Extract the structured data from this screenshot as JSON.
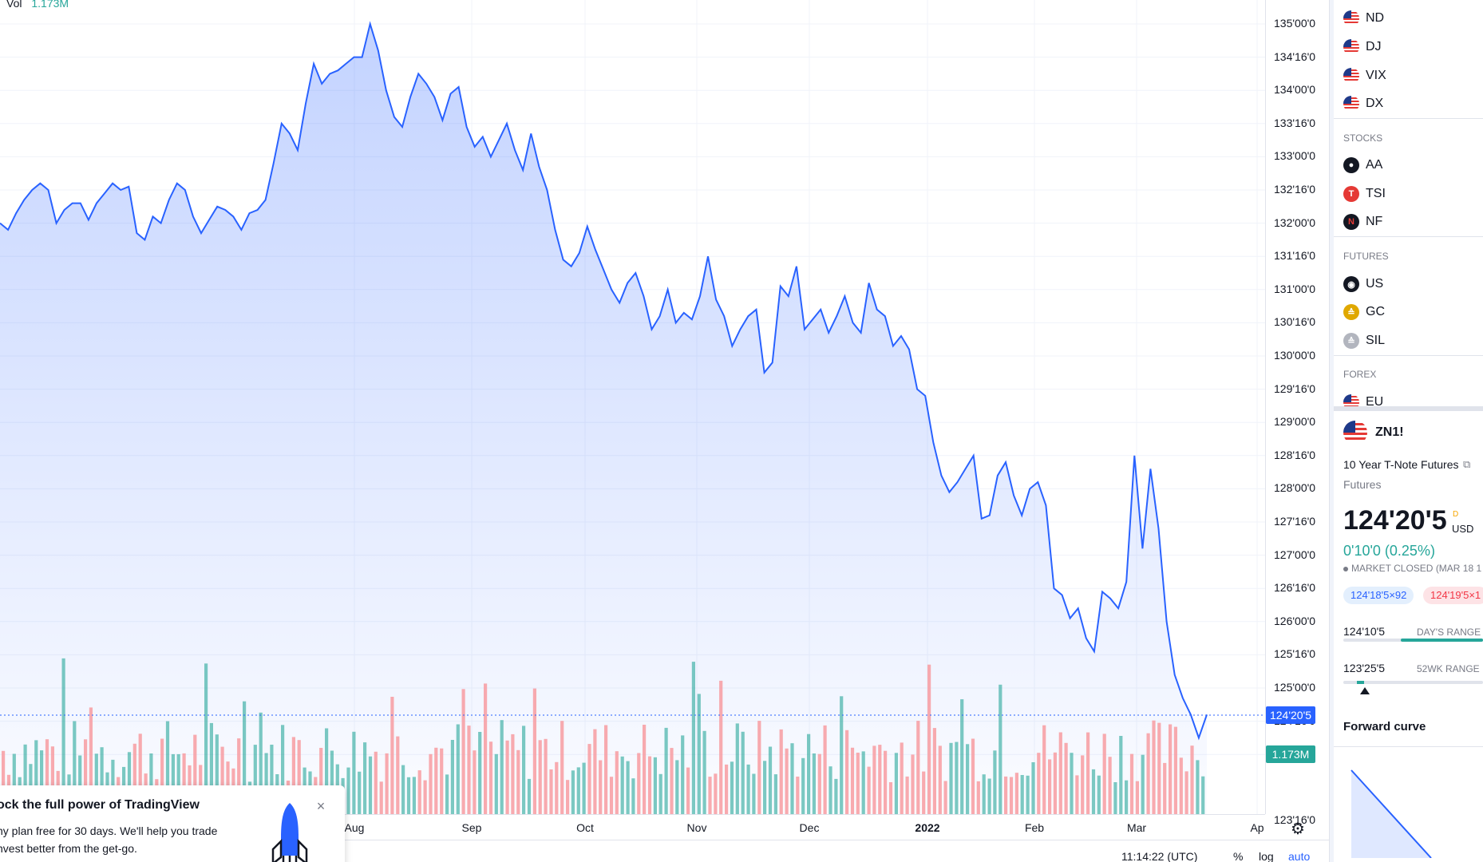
{
  "volume_legend": {
    "label": "Vol",
    "value": "1.173M"
  },
  "price_scale": {
    "labels": [
      "135'00'0",
      "134'16'0",
      "134'00'0",
      "133'16'0",
      "133'00'0",
      "132'16'0",
      "132'00'0",
      "131'16'0",
      "131'00'0",
      "130'16'0",
      "130'00'0",
      "129'16'0",
      "129'00'0",
      "128'16'0",
      "128'00'0",
      "127'16'0",
      "127'00'0",
      "126'16'0",
      "126'00'0",
      "125'16'0",
      "125'00'0",
      "124'16'0",
      "123'16'0"
    ],
    "last_price_tag": "124'20'5",
    "volume_tag": "1.173M"
  },
  "time_axis": {
    "labels": [
      {
        "text": "Aug",
        "year": false
      },
      {
        "text": "Sep",
        "year": false
      },
      {
        "text": "Oct",
        "year": false
      },
      {
        "text": "Nov",
        "year": false
      },
      {
        "text": "Dec",
        "year": false
      },
      {
        "text": "2022",
        "year": true
      },
      {
        "text": "Feb",
        "year": false
      },
      {
        "text": "Mar",
        "year": false
      },
      {
        "text": "Ap",
        "year": false
      }
    ]
  },
  "bottom_bar": {
    "clock": "11:14:22 (UTC)",
    "pct": "%",
    "log": "log",
    "auto": "auto"
  },
  "promo": {
    "title": "ock the full power of TradingView",
    "line1": "ny plan free for 30 days. We'll help you trade",
    "line2": "nvest better from the get-go.",
    "close": "×"
  },
  "watchlist": {
    "rows": [
      {
        "symbol": "ND",
        "icon": "us-flag-icon"
      },
      {
        "symbol": "DJ",
        "icon": "us-flag-icon"
      },
      {
        "symbol": "VIX",
        "icon": "us-flag-icon"
      },
      {
        "symbol": "DX",
        "icon": "us-flag-icon"
      },
      {
        "symbol": "AA",
        "icon": "apple-logo-icon"
      },
      {
        "symbol": "TSI",
        "icon": "tesla-logo-icon"
      },
      {
        "symbol": "NF",
        "icon": "netflix-logo-icon"
      },
      {
        "symbol": "US",
        "icon": "futures-icon"
      },
      {
        "symbol": "GC",
        "icon": "gold-icon"
      },
      {
        "symbol": "SIL",
        "icon": "silver-icon"
      },
      {
        "symbol": "EU",
        "icon": "us-flag-icon"
      }
    ],
    "sections": [
      "STOCKS",
      "FUTURES",
      "FOREX"
    ]
  },
  "details": {
    "symbol": "ZN1!",
    "name": "10 Year T-Note Futures",
    "type": "Futures",
    "price": "124'20'5",
    "price_flag": "D",
    "currency": "USD",
    "change": "0'10'0 (0.25%)",
    "status": "MARKET CLOSED",
    "status_time": "(MAR 18 1",
    "bid": "124'18'5×92",
    "ask": "124'19'5×1",
    "day_low": "124'10'5",
    "day_range_label": "DAY'S RANGE",
    "wk_low": "123'25'5",
    "wk_range_label": "52WK RANGE",
    "forward_curve": "Forward curve"
  },
  "colors": {
    "line": "#2962ff",
    "up_volume": "#26a69a",
    "down_volume": "#f7a1a6",
    "accent": "#2962ff"
  },
  "chart_data": {
    "type": "area",
    "ylim": [
      123.3,
      135.15
    ],
    "x_axis_months": [
      "Aug",
      "Sep",
      "Oct",
      "Nov",
      "Dec",
      "2022",
      "Feb",
      "Mar",
      "Ap"
    ],
    "series": [
      {
        "values": [
          132.0,
          131.9,
          132.15,
          132.35,
          132.5,
          132.6,
          132.5,
          132.0,
          132.2,
          132.3,
          132.3,
          132.05,
          132.3,
          132.45,
          132.6,
          132.5,
          132.55,
          131.85,
          131.75,
          132.1,
          132.0,
          132.35,
          132.6,
          132.5,
          132.1,
          131.85,
          132.05,
          132.25,
          132.2,
          132.1,
          131.9,
          132.15,
          132.2,
          132.35,
          132.9,
          133.5,
          133.35,
          133.1,
          133.8,
          134.4,
          134.1,
          134.25,
          134.3,
          134.4,
          134.5,
          134.5,
          135.0,
          134.6,
          134.0,
          133.6,
          133.45,
          133.9,
          134.25,
          134.1,
          133.9,
          133.55,
          133.95,
          134.05,
          133.45,
          133.15,
          133.3,
          133.0,
          133.25,
          133.5,
          133.1,
          132.8,
          133.35,
          132.85,
          132.5,
          131.9,
          131.45,
          131.35,
          131.55,
          131.95,
          131.6,
          131.3,
          131.0,
          130.8,
          131.1,
          131.25,
          130.9,
          130.4,
          130.6,
          131.0,
          130.5,
          130.65,
          130.55,
          130.9,
          131.5,
          130.85,
          130.6,
          130.15,
          130.4,
          130.6,
          130.7,
          129.75,
          129.9,
          131.05,
          130.9,
          131.35,
          130.4,
          130.55,
          130.7,
          130.35,
          130.6,
          130.9,
          130.5,
          130.35,
          131.1,
          130.7,
          130.6,
          130.15,
          130.3,
          130.1,
          129.5,
          129.4,
          128.7,
          128.2,
          127.95,
          128.1,
          128.3,
          128.5,
          127.55,
          127.6,
          128.2,
          128.4,
          127.9,
          127.6,
          128.0,
          128.1,
          127.75,
          126.5,
          126.4,
          126.05,
          126.2,
          125.75,
          125.55,
          126.45,
          126.35,
          126.2,
          126.6,
          128.5,
          127.1,
          128.3,
          127.4,
          126.0,
          125.2,
          124.85,
          124.6,
          124.25,
          124.6
        ]
      }
    ]
  }
}
